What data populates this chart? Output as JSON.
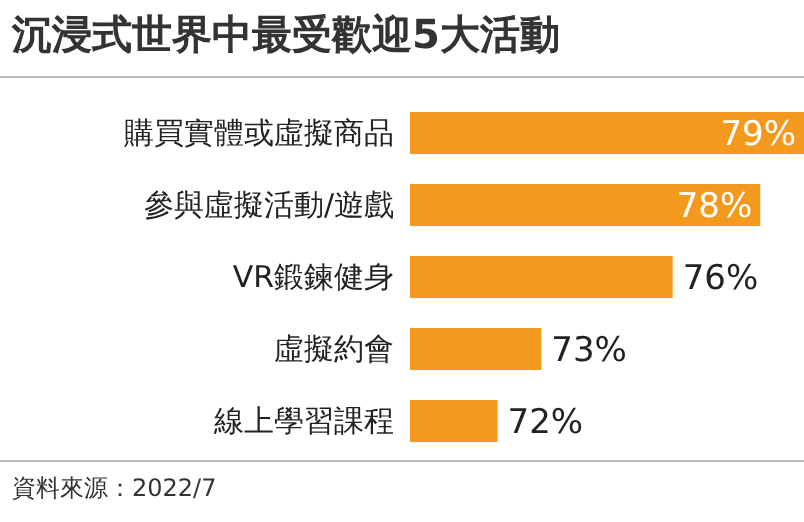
{
  "chart_data": {
    "type": "bar",
    "orientation": "horizontal",
    "title": "沉浸式世界中最受歡迎5大活動",
    "categories": [
      "購買實體或虛擬商品",
      "參與虛擬活動/遊戲",
      "VR鍛鍊健身",
      "虛擬約會",
      "線上學習課程"
    ],
    "values": [
      79,
      78,
      76,
      73,
      72
    ],
    "color": "#f39a1e",
    "value_labels": [
      "79%",
      "78%",
      "76%",
      "73%",
      "72%"
    ],
    "xlim": [
      70,
      79
    ],
    "tick_labels": "y",
    "annotations": [
      "資料來源：2022/7"
    ]
  }
}
